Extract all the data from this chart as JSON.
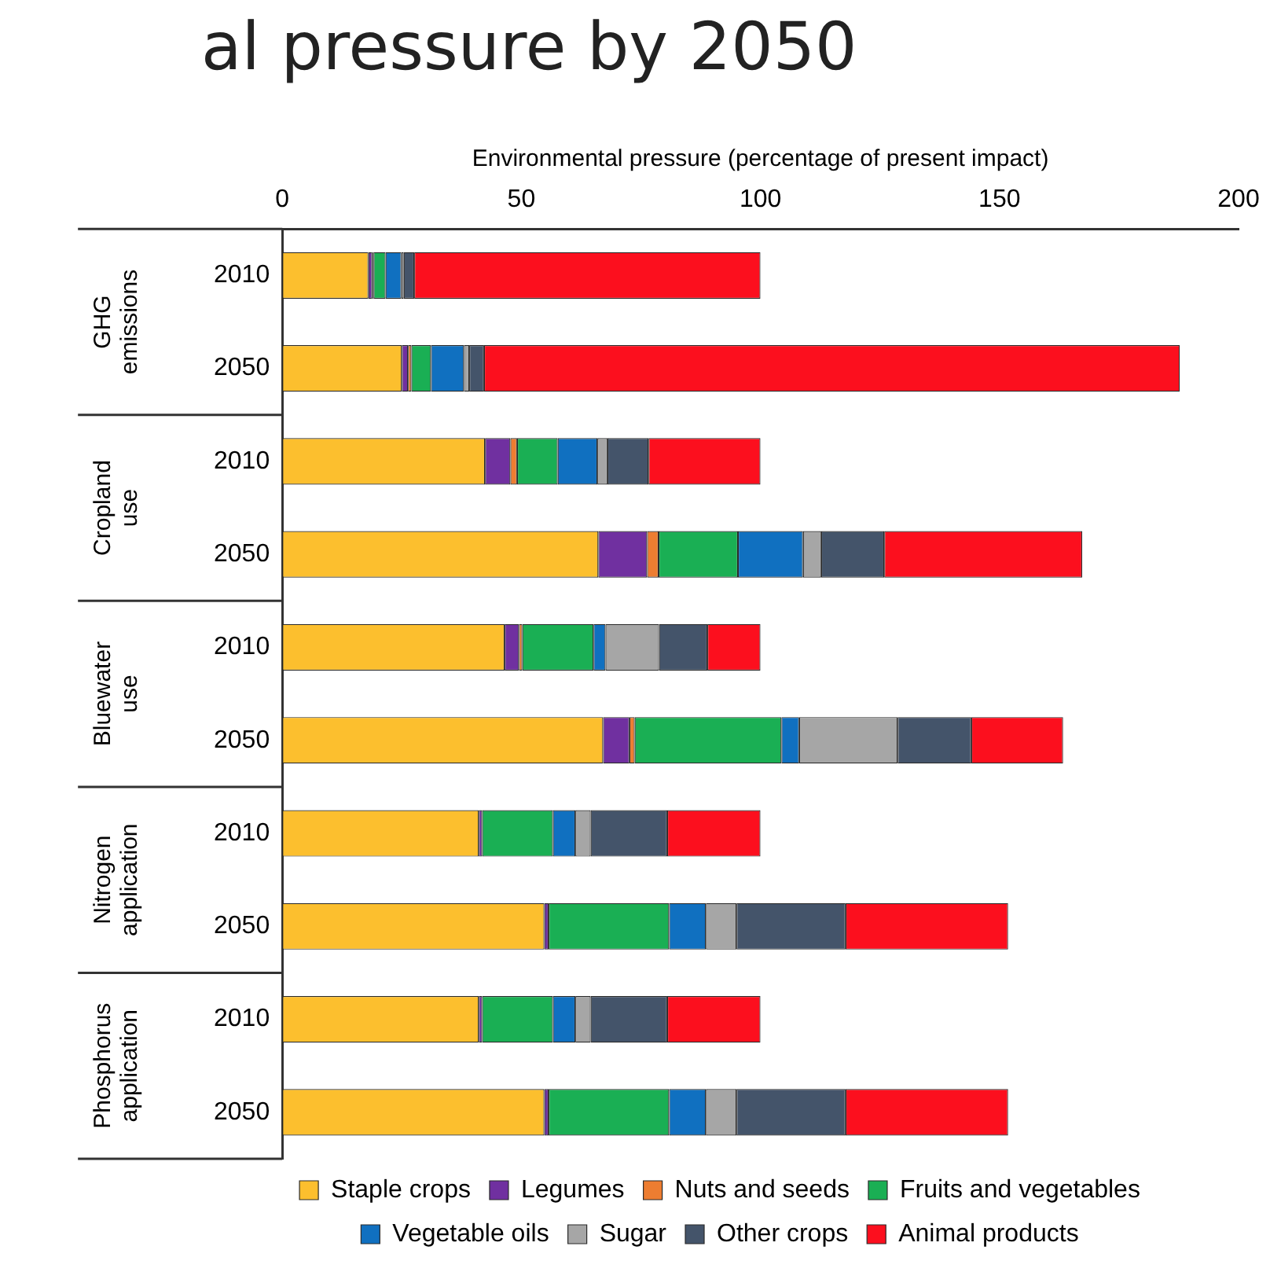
{
  "chart_data": {
    "type": "bar",
    "orientation": "horizontal",
    "stacked": true,
    "title": "al pressure by 2050",
    "xlabel": "Environmental pressure (percentage of present impact)",
    "categories": [
      "2010",
      "2050",
      "2010",
      "2050",
      "2010",
      "2050",
      "2010",
      "2050",
      "2010",
      "2050"
    ],
    "annotations": [
      "GHG emissions",
      "Cropland use",
      "Bluewater use",
      "Nitrogen application",
      "Phosphorus application"
    ],
    "xlim": [
      0,
      200
    ],
    "xticks": [
      0,
      50,
      100,
      150,
      200
    ],
    "grid": false,
    "legend": "bottom",
    "series": [
      {
        "name": "Staple crops",
        "color": "#fcbf2e",
        "values": [
          18,
          25,
          42.4,
          66.1,
          46.5,
          67.1,
          41.1,
          54.8,
          41.1,
          54.8
        ]
      },
      {
        "name": "Legumes",
        "color": "#7030a0",
        "values": [
          0.8,
          1.3,
          5.3,
          10.2,
          3,
          5.5,
          0.7,
          0.9,
          0.7,
          0.9
        ]
      },
      {
        "name": "Nuts and seeds",
        "color": "#ed7d31",
        "values": [
          0.3,
          0.7,
          1.4,
          2.4,
          0.7,
          1.1,
          0,
          0,
          0,
          0
        ]
      },
      {
        "name": "Fruits and vegetables",
        "color": "#1aaf54",
        "values": [
          2.5,
          4.1,
          8.5,
          16.6,
          14.9,
          30.7,
          14.8,
          25.2,
          14.8,
          25.2
        ]
      },
      {
        "name": "Vegetable oils",
        "color": "#1070c0",
        "values": [
          3.3,
          6.9,
          8.3,
          13.6,
          2.5,
          3.7,
          4.7,
          7.7,
          4.7,
          7.7
        ]
      },
      {
        "name": "Sugar",
        "color": "#a6a6a6",
        "values": [
          0.5,
          1.1,
          2.1,
          3.8,
          11.2,
          20.6,
          3.2,
          6.4,
          3.2,
          6.4
        ]
      },
      {
        "name": "Other crops",
        "color": "#44546a",
        "values": [
          2.2,
          3.1,
          8.6,
          13.2,
          10.1,
          15.4,
          16,
          22.8,
          16,
          22.8
        ]
      },
      {
        "name": "Animal products",
        "color": "#fc0f1e",
        "values": [
          72.4,
          145.5,
          23.4,
          41.4,
          11.1,
          19.2,
          19.5,
          34,
          19.5,
          34
        ]
      }
    ]
  }
}
